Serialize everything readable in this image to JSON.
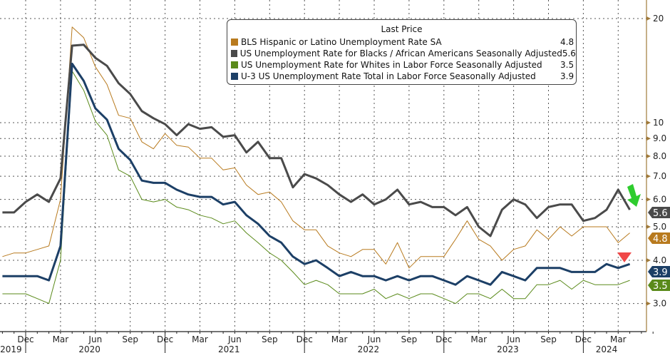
{
  "chart_data": {
    "type": "line",
    "title": "",
    "xlabel": "",
    "ylabel": "",
    "y_scale": "log",
    "ylim": [
      2.6,
      21
    ],
    "grid": true,
    "legend_placement": "top-center",
    "legend_header": "Last Price",
    "y_ticks": [
      "20",
      "10",
      "9.0",
      "8.0",
      "7.0",
      "6.0",
      "5.0",
      "4.0",
      "3.0"
    ],
    "y_tick_values": [
      20,
      10,
      9,
      8,
      7,
      6,
      5,
      4,
      3
    ],
    "x_start": "2019-10",
    "x_end": "2024-04",
    "x_month_ticks": [
      "Dec",
      "Mar",
      "Jun",
      "Sep",
      "Dec",
      "Mar",
      "Jun",
      "Sep",
      "Dec",
      "Mar",
      "Jun",
      "Sep",
      "Dec",
      "Mar",
      "Jun",
      "Sep",
      "Dec",
      "Mar"
    ],
    "x_year_labels": [
      "2019",
      "2020",
      "2021",
      "2022",
      "2023",
      "2024"
    ],
    "series": [
      {
        "name": "BLS Hispanic or Latino Unemployment Rate SA",
        "last": "4.8",
        "color": "#b87a1e",
        "values": [
          4.1,
          4.2,
          4.2,
          4.3,
          4.4,
          6.0,
          18.9,
          17.6,
          14.5,
          12.9,
          10.5,
          10.3,
          8.8,
          8.4,
          9.3,
          8.6,
          8.5,
          7.9,
          7.9,
          7.3,
          7.4,
          6.6,
          6.2,
          6.3,
          5.9,
          5.2,
          4.9,
          4.9,
          4.4,
          4.2,
          4.1,
          4.3,
          4.3,
          3.9,
          4.5,
          3.8,
          4.1,
          4.1,
          4.1,
          4.6,
          5.2,
          4.6,
          4.4,
          4.0,
          4.3,
          4.4,
          4.9,
          4.6,
          5.0,
          4.7,
          5.0,
          5.0,
          5.0,
          4.5,
          4.8
        ]
      },
      {
        "name": "US Unemployment Rate for Blacks / African Americans Seasonally Adjusted",
        "last": "5.6",
        "color": "#4a4a4a",
        "values": [
          5.5,
          5.5,
          5.9,
          6.2,
          5.9,
          6.9,
          16.7,
          16.8,
          15.4,
          14.6,
          13.0,
          12.1,
          10.8,
          10.3,
          9.9,
          9.2,
          9.9,
          9.6,
          9.7,
          9.1,
          9.2,
          8.2,
          8.8,
          7.9,
          7.9,
          6.5,
          7.1,
          6.9,
          6.6,
          6.2,
          5.9,
          6.2,
          5.8,
          6.0,
          6.4,
          5.8,
          5.9,
          5.7,
          5.7,
          5.4,
          5.7,
          5.0,
          4.7,
          5.6,
          6.0,
          5.8,
          5.3,
          5.7,
          5.8,
          5.8,
          5.2,
          5.3,
          5.6,
          6.4,
          5.6
        ]
      },
      {
        "name": "US Unemployment Rate for Whites in Labor Force Seasonally Adjusted",
        "last": "3.5",
        "color": "#5a8a1a",
        "values": [
          3.2,
          3.2,
          3.2,
          3.1,
          3.0,
          4.0,
          14.1,
          12.4,
          10.1,
          9.2,
          7.3,
          7.0,
          6.0,
          5.9,
          6.0,
          5.7,
          5.6,
          5.4,
          5.3,
          5.1,
          5.2,
          4.8,
          4.5,
          4.2,
          4.0,
          3.7,
          3.4,
          3.5,
          3.4,
          3.2,
          3.2,
          3.2,
          3.3,
          3.1,
          3.2,
          3.1,
          3.2,
          3.2,
          3.1,
          3.0,
          3.2,
          3.2,
          3.1,
          3.3,
          3.1,
          3.1,
          3.4,
          3.4,
          3.5,
          3.3,
          3.5,
          3.4,
          3.4,
          3.4,
          3.5
        ]
      },
      {
        "name": "U-3 US Unemployment Rate Total in Labor Force Seasonally Adjusted",
        "last": "3.9",
        "color": "#1c3f66",
        "values": [
          3.6,
          3.6,
          3.6,
          3.6,
          3.5,
          4.4,
          14.8,
          13.2,
          11.0,
          10.2,
          8.4,
          7.8,
          6.8,
          6.7,
          6.7,
          6.4,
          6.2,
          6.1,
          6.1,
          5.8,
          5.9,
          5.4,
          5.1,
          4.7,
          4.5,
          4.1,
          3.9,
          4.0,
          3.8,
          3.6,
          3.7,
          3.6,
          3.6,
          3.5,
          3.6,
          3.5,
          3.6,
          3.6,
          3.5,
          3.4,
          3.6,
          3.5,
          3.4,
          3.7,
          3.6,
          3.5,
          3.8,
          3.8,
          3.8,
          3.7,
          3.7,
          3.7,
          3.9,
          3.8,
          3.9
        ]
      }
    ],
    "annotations": [
      {
        "type": "arrow",
        "color": "#2ecc2e",
        "direction": "down-right",
        "target_series": "US Unemployment Rate for Blacks / African Americans Seasonally Adjusted"
      },
      {
        "type": "triangle",
        "color": "#f04848",
        "direction": "down",
        "target_series": "U-3 US Unemployment Rate Total in Labor Force Seasonally Adjusted"
      }
    ]
  }
}
